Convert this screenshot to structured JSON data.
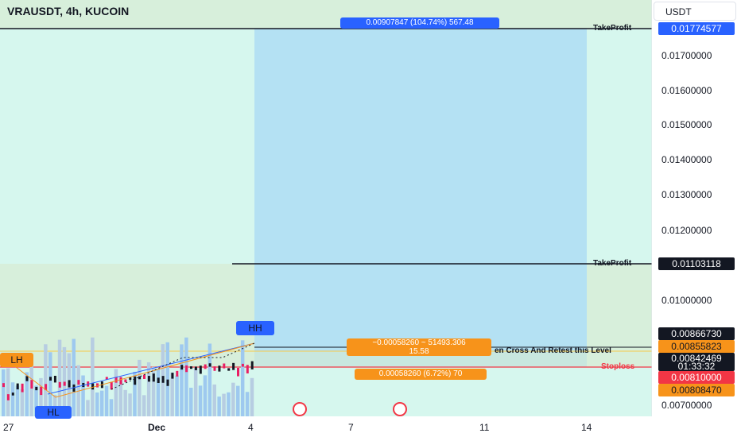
{
  "header": {
    "title": "VRAUSDT, 4h, KUCOIN",
    "currency": "USDT"
  },
  "y_axis": {
    "ticks": [
      "0.01700000",
      "0.01600000",
      "0.01500000",
      "0.01400000",
      "0.01300000",
      "0.01200000",
      "0.01000000",
      "0.00700000"
    ]
  },
  "x_axis": {
    "ticks": [
      "27",
      "Dec",
      "4",
      "7",
      "11",
      "14"
    ]
  },
  "price_labels": {
    "take_profit_1": "0.01774577",
    "take_profit_2": "0.01103118",
    "p1": "0.00866730",
    "p2": "0.00855823",
    "current": "0.00842469",
    "countdown": "01:33:32",
    "stoploss": "0.00810000",
    "p3": "0.00808470"
  },
  "annotations": {
    "tp_label": "TakeProfit",
    "tp2_label": "TakeProfit",
    "sl_label": "Stoploss",
    "measure_top": "0.00907847 (104.74%) 567.48",
    "measure_mid_line1": "−0.00058260 ~ 51493.306",
    "measure_mid_line2": "15.58",
    "measure_bottom": "0.00058260 (6.72%) 70",
    "level_text": "en Cross And Retest this Level",
    "hh": "HH",
    "lh": "LH",
    "hl": "HL"
  },
  "colors": {
    "tp_box": "#b3dff0",
    "tp_label_bg": "#2962ff",
    "sl_label_bg": "#f23645",
    "orange": "#f7931a",
    "black": "#131722"
  }
}
